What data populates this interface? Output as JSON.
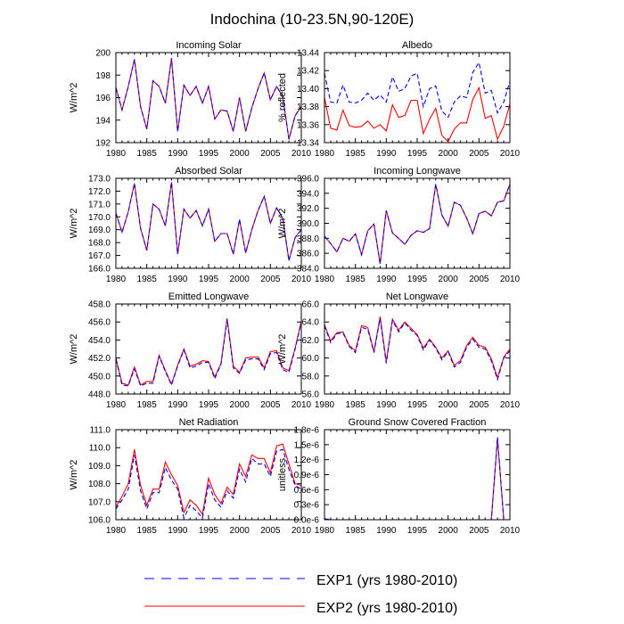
{
  "figure_title": "Indochina (10-23.5N,90-120E)",
  "legend": [
    {
      "label": "EXP1 (yrs 1980-2010)",
      "color": "#0000ff",
      "dash": true
    },
    {
      "label": "EXP2 (yrs 1980-2010)",
      "color": "#ff0000",
      "dash": false
    }
  ],
  "colors": {
    "exp1": "#0000ff",
    "exp2": "#ff0000"
  },
  "chart_data": [
    {
      "type": "line",
      "title": "Incoming Solar",
      "ylabel": "W/m^2",
      "xlim": [
        1980,
        2010
      ],
      "ylim": [
        192,
        200
      ],
      "xticks": [
        1980,
        1985,
        1990,
        1995,
        2000,
        2005,
        2010
      ],
      "yticks": [
        192,
        194,
        196,
        198,
        200
      ],
      "ytick_labels": [
        "192",
        "194",
        "196",
        "198",
        "200"
      ],
      "x": [
        1980,
        1981,
        1982,
        1983,
        1984,
        1985,
        1986,
        1987,
        1988,
        1989,
        1990,
        1991,
        1992,
        1993,
        1994,
        1995,
        1996,
        1997,
        1998,
        1999,
        2000,
        2001,
        2002,
        2003,
        2004,
        2005,
        2006,
        2007,
        2008,
        2009,
        2010
      ],
      "series": [
        {
          "name": "EXP1",
          "values": [
            196.9,
            194.9,
            197.0,
            199.4,
            195.2,
            193.2,
            197.5,
            197.0,
            195.5,
            199.5,
            193.0,
            197.1,
            196.2,
            197.0,
            195.5,
            197.0,
            194.1,
            194.9,
            194.8,
            193.0,
            196.0,
            193.0,
            195.1,
            196.8,
            198.2,
            195.8,
            197.0,
            196.1,
            192.3,
            194.4,
            195.2
          ]
        },
        {
          "name": "EXP2",
          "values": [
            196.9,
            194.9,
            197.0,
            199.4,
            195.2,
            193.2,
            197.5,
            197.0,
            195.5,
            199.5,
            193.0,
            197.1,
            196.2,
            197.0,
            195.5,
            197.0,
            194.1,
            194.9,
            194.8,
            193.0,
            196.0,
            193.0,
            195.1,
            196.8,
            198.2,
            195.8,
            197.0,
            196.1,
            192.3,
            194.4,
            195.2
          ]
        }
      ]
    },
    {
      "type": "line",
      "title": "Albedo",
      "ylabel": "% reflected",
      "xlim": [
        1980,
        2010
      ],
      "ylim": [
        13.34,
        13.44
      ],
      "xticks": [
        1980,
        1985,
        1990,
        1995,
        2000,
        2005,
        2010
      ],
      "yticks": [
        13.34,
        13.36,
        13.38,
        13.4,
        13.42,
        13.44
      ],
      "ytick_labels": [
        "13.34",
        "13.36",
        "13.38",
        "13.40",
        "13.42",
        "13.44"
      ],
      "x": [
        1980,
        1981,
        1982,
        1983,
        1984,
        1985,
        1986,
        1987,
        1988,
        1989,
        1990,
        1991,
        1992,
        1993,
        1994,
        1995,
        1996,
        1997,
        1998,
        1999,
        2000,
        2001,
        2002,
        2003,
        2004,
        2005,
        2006,
        2007,
        2008,
        2009,
        2010
      ],
      "series": [
        {
          "name": "EXP1",
          "values": [
            13.417,
            13.385,
            13.384,
            13.404,
            13.385,
            13.384,
            13.387,
            13.395,
            13.387,
            13.393,
            13.385,
            13.413,
            13.397,
            13.4,
            13.414,
            13.417,
            13.38,
            13.4,
            13.403,
            13.375,
            13.368,
            13.385,
            13.392,
            13.39,
            13.418,
            13.429,
            13.395,
            13.398,
            13.373,
            13.385,
            13.408
          ]
        },
        {
          "name": "EXP2",
          "values": [
            13.39,
            13.356,
            13.354,
            13.376,
            13.359,
            13.357,
            13.358,
            13.364,
            13.356,
            13.36,
            13.353,
            13.382,
            13.368,
            13.37,
            13.387,
            13.387,
            13.35,
            13.366,
            13.378,
            13.348,
            13.341,
            13.355,
            13.362,
            13.362,
            13.388,
            13.401,
            13.367,
            13.37,
            13.344,
            13.358,
            13.383
          ]
        }
      ]
    },
    {
      "type": "line",
      "title": "Absorbed Solar",
      "ylabel": "W/m^2",
      "xlim": [
        1980,
        2010
      ],
      "ylim": [
        166,
        173
      ],
      "xticks": [
        1980,
        1985,
        1990,
        1995,
        2000,
        2005,
        2010
      ],
      "yticks": [
        166,
        167,
        168,
        169,
        170,
        171,
        172,
        173
      ],
      "ytick_labels": [
        "166.0",
        "167.0",
        "168.0",
        "169.0",
        "170.0",
        "171.0",
        "172.0",
        "173.0"
      ],
      "x": [
        1980,
        1981,
        1982,
        1983,
        1984,
        1985,
        1986,
        1987,
        1988,
        1989,
        1990,
        1991,
        1992,
        1993,
        1994,
        1995,
        1996,
        1997,
        1998,
        1999,
        2000,
        2001,
        2002,
        2003,
        2004,
        2005,
        2006,
        2007,
        2008,
        2009,
        2010
      ],
      "series": [
        {
          "name": "EXP1",
          "values": [
            170.3,
            168.8,
            170.4,
            172.6,
            169.1,
            167.4,
            171.0,
            170.6,
            169.3,
            172.7,
            167.1,
            170.6,
            169.9,
            170.5,
            169.3,
            170.6,
            168.1,
            168.7,
            168.7,
            167.1,
            169.8,
            167.2,
            169.0,
            170.5,
            171.6,
            169.5,
            170.7,
            169.9,
            166.6,
            168.4,
            169.0
          ]
        },
        {
          "name": "EXP2",
          "values": [
            170.3,
            168.8,
            170.4,
            172.6,
            169.1,
            167.4,
            171.0,
            170.6,
            169.3,
            172.7,
            167.1,
            170.6,
            169.9,
            170.5,
            169.3,
            170.6,
            168.1,
            168.7,
            168.7,
            167.1,
            169.8,
            167.2,
            169.0,
            170.5,
            171.6,
            169.5,
            170.7,
            169.9,
            166.6,
            168.4,
            169.0
          ]
        }
      ]
    },
    {
      "type": "line",
      "title": "Incoming Longwave",
      "ylabel": "W/m^2",
      "xlim": [
        1980,
        2010
      ],
      "ylim": [
        384,
        396
      ],
      "xticks": [
        1980,
        1985,
        1990,
        1995,
        2000,
        2005,
        2010
      ],
      "yticks": [
        384,
        386,
        388,
        390,
        392,
        394,
        396
      ],
      "ytick_labels": [
        "384.0",
        "386.0",
        "388.0",
        "390.0",
        "392.0",
        "394.0",
        "396.0"
      ],
      "x": [
        1980,
        1981,
        1982,
        1983,
        1984,
        1985,
        1986,
        1987,
        1988,
        1989,
        1990,
        1991,
        1992,
        1993,
        1994,
        1995,
        1996,
        1997,
        1998,
        1999,
        2000,
        2001,
        2002,
        2003,
        2004,
        2005,
        2006,
        2007,
        2008,
        2009,
        2010
      ],
      "series": [
        {
          "name": "EXP1",
          "values": [
            388.3,
            387.3,
            386.2,
            388.0,
            387.6,
            388.6,
            385.8,
            389.0,
            389.9,
            384.6,
            391.7,
            388.7,
            388.0,
            387.2,
            388.4,
            389.0,
            388.8,
            389.3,
            395.2,
            391.1,
            389.6,
            392.8,
            392.4,
            390.7,
            388.6,
            391.3,
            391.6,
            391.0,
            392.8,
            393.0,
            395.2
          ]
        },
        {
          "name": "EXP2",
          "values": [
            388.3,
            387.3,
            386.2,
            388.0,
            387.6,
            388.6,
            385.8,
            389.0,
            389.9,
            384.6,
            391.7,
            388.7,
            388.0,
            387.2,
            388.4,
            389.0,
            388.8,
            389.3,
            395.2,
            391.1,
            389.6,
            392.8,
            392.4,
            390.7,
            388.6,
            391.3,
            391.6,
            391.0,
            392.8,
            393.0,
            395.2
          ]
        }
      ]
    },
    {
      "type": "line",
      "title": "Emitted Longwave",
      "ylabel": "W/m^2",
      "xlim": [
        1980,
        2010
      ],
      "ylim": [
        448,
        458
      ],
      "xticks": [
        1980,
        1985,
        1990,
        1995,
        2000,
        2005,
        2010
      ],
      "yticks": [
        448,
        450,
        452,
        454,
        456,
        458
      ],
      "ytick_labels": [
        "448.0",
        "450.0",
        "452.0",
        "454.0",
        "456.0",
        "458.0"
      ],
      "x": [
        1980,
        1981,
        1982,
        1983,
        1984,
        1985,
        1986,
        1987,
        1988,
        1989,
        1990,
        1991,
        1992,
        1993,
        1994,
        1995,
        1996,
        1997,
        1998,
        1999,
        2000,
        2001,
        2002,
        2003,
        2004,
        2005,
        2006,
        2007,
        2008,
        2009,
        2010
      ],
      "series": [
        {
          "name": "EXP1",
          "values": [
            451.9,
            449.0,
            448.9,
            450.8,
            448.9,
            449.2,
            449.2,
            452.2,
            450.5,
            449.0,
            451.1,
            452.9,
            450.9,
            451.1,
            451.5,
            451.5,
            449.7,
            451.3,
            456.3,
            450.9,
            450.3,
            451.8,
            451.9,
            451.9,
            450.7,
            452.5,
            452.6,
            450.7,
            450.4,
            453.0,
            456.0
          ]
        },
        {
          "name": "EXP2",
          "values": [
            452.0,
            449.2,
            449.0,
            451.0,
            449.0,
            449.4,
            449.4,
            452.3,
            450.6,
            449.1,
            451.2,
            453.0,
            451.1,
            451.3,
            451.7,
            451.6,
            449.9,
            451.4,
            456.4,
            451.1,
            450.4,
            452.0,
            452.1,
            452.1,
            450.9,
            452.7,
            452.8,
            450.9,
            450.6,
            453.1,
            456.1
          ]
        }
      ]
    },
    {
      "type": "line",
      "title": "Net Longwave",
      "ylabel": "W/m^2",
      "xlim": [
        1980,
        2010
      ],
      "ylim": [
        56,
        66
      ],
      "xticks": [
        1980,
        1985,
        1990,
        1995,
        2000,
        2005,
        2010
      ],
      "yticks": [
        56,
        58,
        60,
        62,
        64,
        66
      ],
      "ytick_labels": [
        "56.0",
        "58.0",
        "60.0",
        "62.0",
        "64.0",
        "66.0"
      ],
      "x": [
        1980,
        1981,
        1982,
        1983,
        1984,
        1985,
        1986,
        1987,
        1988,
        1989,
        1990,
        1991,
        1992,
        1993,
        1994,
        1995,
        1996,
        1997,
        1998,
        1999,
        2000,
        2001,
        2002,
        2003,
        2004,
        2005,
        2006,
        2007,
        2008,
        2009,
        2010
      ],
      "series": [
        {
          "name": "EXP1",
          "values": [
            63.6,
            61.7,
            62.7,
            62.8,
            61.3,
            60.6,
            63.4,
            63.2,
            60.6,
            64.4,
            59.4,
            64.2,
            62.9,
            63.9,
            63.1,
            62.5,
            60.9,
            62.0,
            61.1,
            59.8,
            60.7,
            59.0,
            59.5,
            61.2,
            62.1,
            61.2,
            61.0,
            59.7,
            57.6,
            60.0,
            60.8
          ]
        },
        {
          "name": "EXP2",
          "values": [
            63.7,
            61.9,
            62.8,
            62.9,
            61.4,
            60.8,
            63.6,
            63.4,
            60.7,
            64.6,
            59.6,
            64.3,
            63.1,
            64.0,
            63.3,
            62.6,
            61.1,
            62.1,
            61.2,
            60.0,
            60.8,
            59.2,
            59.7,
            61.4,
            62.3,
            61.4,
            61.2,
            59.9,
            57.8,
            60.1,
            61.0
          ]
        }
      ]
    },
    {
      "type": "line",
      "title": "Net Radiation",
      "ylabel": "W/m^2",
      "xlim": [
        1980,
        2010
      ],
      "ylim": [
        106,
        111
      ],
      "xticks": [
        1980,
        1985,
        1990,
        1995,
        2000,
        2005,
        2010
      ],
      "yticks": [
        106,
        107,
        108,
        109,
        110,
        111
      ],
      "ytick_labels": [
        "106.0",
        "107.0",
        "108.0",
        "109.0",
        "110.0",
        "111.0"
      ],
      "x": [
        1980,
        1981,
        1982,
        1983,
        1984,
        1985,
        1986,
        1987,
        1988,
        1989,
        1990,
        1991,
        1992,
        1993,
        1994,
        1995,
        1996,
        1997,
        1998,
        1999,
        2000,
        2001,
        2002,
        2003,
        2004,
        2005,
        2006,
        2007,
        2008,
        2009,
        2010
      ],
      "series": [
        {
          "name": "EXP1",
          "values": [
            106.6,
            107.1,
            107.7,
            109.6,
            107.6,
            106.6,
            107.5,
            107.5,
            108.9,
            108.2,
            107.7,
            106.1,
            106.8,
            106.5,
            106.1,
            108.0,
            107.1,
            106.7,
            107.6,
            107.2,
            108.8,
            108.1,
            109.4,
            109.1,
            109.1,
            108.4,
            109.8,
            109.9,
            108.8,
            107.9,
            107.7
          ]
        },
        {
          "name": "EXP2",
          "values": [
            106.7,
            107.3,
            108.0,
            109.9,
            107.9,
            106.8,
            107.7,
            107.7,
            109.2,
            108.5,
            107.9,
            106.4,
            107.1,
            106.8,
            106.3,
            108.3,
            107.4,
            106.9,
            107.8,
            107.4,
            109.1,
            108.4,
            109.6,
            109.4,
            109.4,
            108.6,
            110.1,
            110.2,
            109.1,
            108.0,
            107.9
          ]
        }
      ]
    },
    {
      "type": "line",
      "title": "Ground Snow Covered Fraction",
      "ylabel": "unitless",
      "xlim": [
        1980,
        2010
      ],
      "ylim": [
        0,
        1.8e-06
      ],
      "xticks": [
        1980,
        1985,
        1990,
        1995,
        2000,
        2005,
        2010
      ],
      "yticks": [
        0,
        3e-07,
        6e-07,
        9e-07,
        1.2e-06,
        1.5e-06,
        1.8e-06
      ],
      "ytick_labels": [
        "0.0e-6",
        "0.3e-6",
        "0.6e-6",
        "0.9e-6",
        "1.2e-6",
        "1.5e-6",
        "1.8e-6"
      ],
      "x": [
        1980,
        1981,
        1982,
        1983,
        1984,
        1985,
        1986,
        1987,
        1988,
        1989,
        1990,
        1991,
        1992,
        1993,
        1994,
        1995,
        1996,
        1997,
        1998,
        1999,
        2000,
        2001,
        2002,
        2003,
        2004,
        2005,
        2006,
        2007,
        2008,
        2009,
        2010
      ],
      "series": [
        {
          "name": "EXP1",
          "values": [
            2e-08,
            0,
            0,
            0,
            0,
            0,
            0,
            0,
            0,
            0,
            0,
            0,
            0,
            0,
            0,
            0,
            0,
            0,
            0,
            0,
            0,
            0,
            0,
            0,
            0,
            0,
            0,
            0,
            1.65e-06,
            0,
            0
          ]
        },
        {
          "name": "EXP2",
          "values": [
            2e-08,
            0,
            0,
            0,
            0,
            0,
            0,
            0,
            0,
            0,
            0,
            0,
            0,
            0,
            0,
            0,
            0,
            0,
            0,
            0,
            0,
            0,
            0,
            0,
            0,
            0,
            0,
            0,
            1.62e-06,
            0,
            0
          ]
        }
      ]
    }
  ]
}
